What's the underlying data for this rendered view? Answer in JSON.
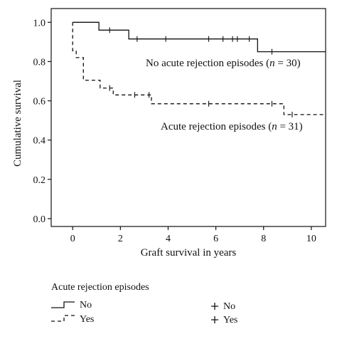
{
  "chart_data": {
    "type": "line",
    "title": "",
    "xlabel": "Graft survival in years",
    "ylabel": "Cumulative survival",
    "xlim": [
      -0.9,
      10.6
    ],
    "ylim": [
      -0.04,
      1.07
    ],
    "x_ticks": [
      "0",
      "2",
      "4",
      "6",
      "8",
      "10"
    ],
    "y_ticks": [
      "0.0",
      "0.2",
      "0.4",
      "0.6",
      "0.8",
      "1.0"
    ],
    "grid": false,
    "series": [
      {
        "name": "No",
        "step": true,
        "dash": "solid",
        "points": [
          [
            0,
            1.0
          ],
          [
            1.1,
            1.0
          ],
          [
            1.1,
            0.96
          ],
          [
            2.35,
            0.96
          ],
          [
            2.35,
            0.915
          ],
          [
            7.75,
            0.915
          ],
          [
            7.75,
            0.85
          ],
          [
            10.6,
            0.85
          ]
        ],
        "censored": [
          [
            1.55,
            0.96
          ],
          [
            2.7,
            0.915
          ],
          [
            3.9,
            0.915
          ],
          [
            5.7,
            0.915
          ],
          [
            6.3,
            0.915
          ],
          [
            6.7,
            0.915
          ],
          [
            6.9,
            0.915
          ],
          [
            7.4,
            0.915
          ],
          [
            8.35,
            0.85
          ]
        ]
      },
      {
        "name": "Yes",
        "step": true,
        "dash": "dashed",
        "points": [
          [
            0,
            1.0
          ],
          [
            0,
            0.855
          ],
          [
            0.15,
            0.855
          ],
          [
            0.15,
            0.82
          ],
          [
            0.45,
            0.82
          ],
          [
            0.45,
            0.705
          ],
          [
            1.15,
            0.705
          ],
          [
            1.15,
            0.665
          ],
          [
            1.7,
            0.665
          ],
          [
            1.7,
            0.63
          ],
          [
            3.3,
            0.63
          ],
          [
            3.3,
            0.585
          ],
          [
            8.85,
            0.585
          ],
          [
            8.85,
            0.53
          ],
          [
            10.6,
            0.53
          ]
        ],
        "censored": [
          [
            1.55,
            0.665
          ],
          [
            2.6,
            0.63
          ],
          [
            3.2,
            0.63
          ],
          [
            5.7,
            0.585
          ],
          [
            8.35,
            0.585
          ],
          [
            9.2,
            0.53
          ]
        ]
      }
    ],
    "annotations": [
      {
        "pre": "No acute rejection episodes (",
        "n": "n",
        "post": " = 30)"
      },
      {
        "pre": "Acute rejection episodes (",
        "n": "n",
        "post": " = 31)"
      }
    ],
    "legend": {
      "title": "Acute rejection episodes",
      "line_entries": [
        "No",
        "Yes"
      ],
      "censor_entries": [
        "No",
        "Yes"
      ],
      "placement": "bottom"
    }
  }
}
